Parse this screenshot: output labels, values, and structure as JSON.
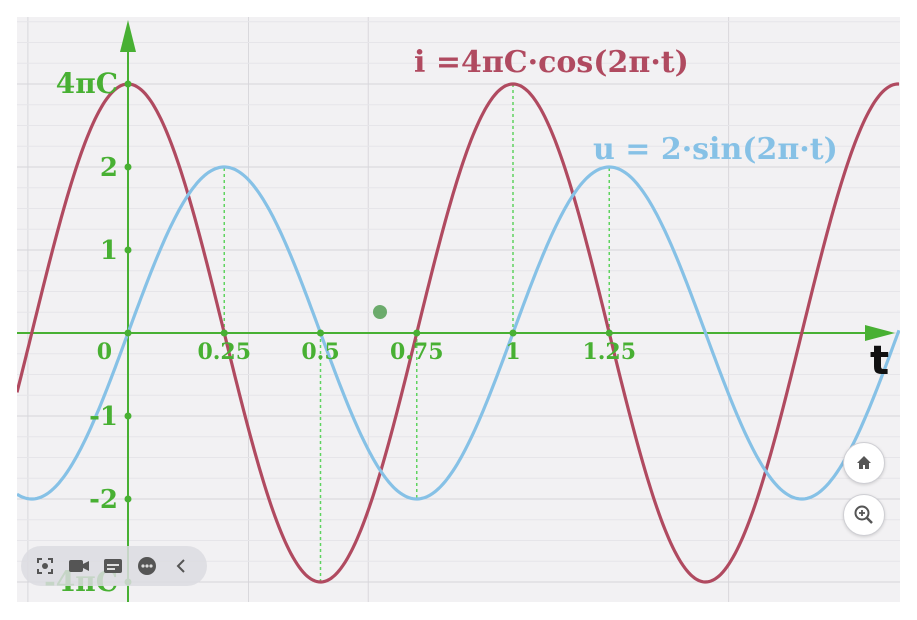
{
  "chart_data": {
    "type": "line",
    "title": "",
    "xlabel": "t",
    "ylabel": "",
    "xlim": [
      -0.28,
      1.87
    ],
    "ylim": [
      -3.0,
      3.8
    ],
    "x_ticks": [
      {
        "value": 0,
        "label": "0"
      },
      {
        "value": 0.25,
        "label": "0.25"
      },
      {
        "value": 0.5,
        "label": "0.5"
      },
      {
        "value": 0.75,
        "label": "0.75"
      },
      {
        "value": 1,
        "label": "1"
      },
      {
        "value": 1.25,
        "label": "1.25"
      }
    ],
    "y_ticks": [
      {
        "value": 3.0,
        "label": "4πC"
      },
      {
        "value": 2,
        "label": "2"
      },
      {
        "value": 1,
        "label": "1"
      },
      {
        "value": -1,
        "label": "-1"
      },
      {
        "value": -2,
        "label": "-2"
      },
      {
        "value": -3.0,
        "label": "-4πC"
      }
    ],
    "series": [
      {
        "name": "i =4πC·cos(2π·t)",
        "func": "cos",
        "amplitude": 3.0,
        "frequency": 1,
        "color": "#b04a60"
      },
      {
        "name": "u = 2·sin(2π·t)",
        "func": "sin",
        "amplitude": 2,
        "frequency": 1,
        "color": "#86c1e6"
      }
    ],
    "dashed_guides_x": [
      0.25,
      0.5,
      0.75,
      1,
      1.25
    ],
    "grid": true,
    "axis_color": "#48b033"
  },
  "labels": {
    "i_equation": "i =4πC·cos(2π·t)",
    "u_equation": "u = 2·sin(2π·t)",
    "t_axis": "t"
  },
  "toolbar": {
    "icons": [
      "screenshot-icon",
      "camera-icon",
      "subtitle-icon",
      "more-icon",
      "chevron-left-icon"
    ]
  },
  "controls": {
    "home": "home-icon",
    "zoom": "zoom-in-icon"
  }
}
